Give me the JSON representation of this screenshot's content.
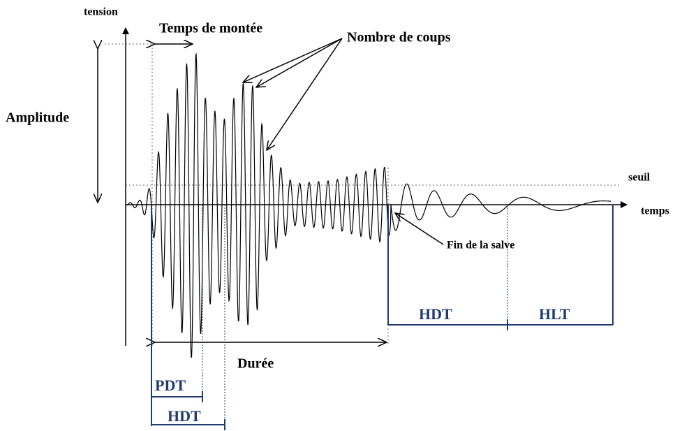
{
  "labels": {
    "y_axis": "tension",
    "x_axis": "temps",
    "rise_time": "Temps de montée",
    "counts": "Nombre de coups",
    "amplitude": "Amplitude",
    "threshold": "seuil",
    "end": "Fin de la salve",
    "duration": "Durée",
    "pdt": "PDT",
    "hdt_bottom": "HDT",
    "hdt_right": "HDT",
    "hlt": "HLT"
  }
}
